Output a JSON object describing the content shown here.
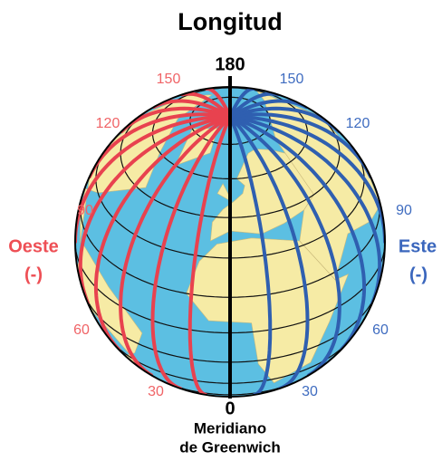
{
  "title": "Longitud",
  "top_label": "180",
  "west": {
    "labels": [
      "150",
      "120",
      "90",
      "60",
      "30"
    ],
    "name": "Oeste",
    "sign": "(-)"
  },
  "east": {
    "labels": [
      "150",
      "120",
      "90",
      "60",
      "30"
    ],
    "name": "Este",
    "sign": "(-)"
  },
  "bottom": {
    "label": "0",
    "caption": [
      "Meridiano",
      "de Greenwich"
    ]
  }
}
